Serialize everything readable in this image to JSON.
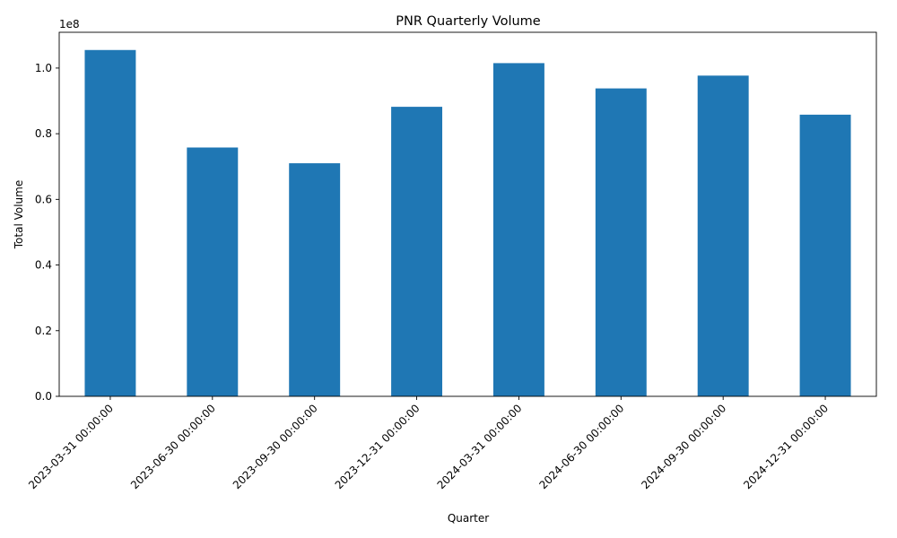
{
  "chart_data": {
    "type": "bar",
    "title": "PNR Quarterly Volume",
    "xlabel": "Quarter",
    "ylabel": "Total Volume",
    "y_scale_label": "1e8",
    "categories": [
      "2023-03-31 00:00:00",
      "2023-06-30 00:00:00",
      "2023-09-30 00:00:00",
      "2023-12-31 00:00:00",
      "2024-03-31 00:00:00",
      "2024-06-30 00:00:00",
      "2024-09-30 00:00:00",
      "2024-12-31 00:00:00"
    ],
    "values": [
      105500000,
      75800000,
      71000000,
      88200000,
      101500000,
      93800000,
      97700000,
      85800000
    ],
    "ylim": [
      0,
      110900000
    ],
    "y_ticks": [
      0,
      20000000,
      40000000,
      60000000,
      80000000,
      100000000
    ],
    "y_tick_labels": [
      "0.0",
      "0.2",
      "0.4",
      "0.6",
      "0.8",
      "1.0"
    ],
    "grid": false,
    "legend": "none",
    "bar_color": "#1f77b4"
  }
}
